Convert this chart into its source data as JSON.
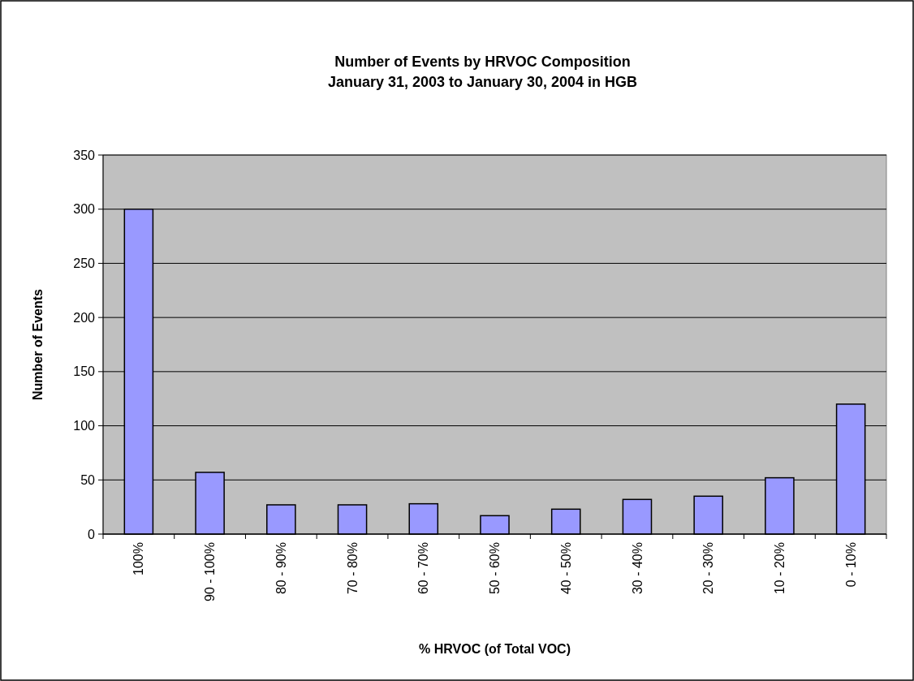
{
  "chart_data": {
    "type": "bar",
    "title": "Number of Events by HRVOC Composition\nJanuary 31, 2003 to January 30, 2004 in HGB",
    "xlabel": "% HRVOC (of Total VOC)",
    "ylabel": "Number of Events",
    "categories": [
      "100%",
      "90 - 100%",
      "80 - 90%",
      "70 - 80%",
      "60 - 70%",
      "50 - 60%",
      "40 - 50%",
      "30 - 40%",
      "20 - 30%",
      "10 - 20%",
      "0 - 10%"
    ],
    "values": [
      300,
      57,
      27,
      27,
      28,
      17,
      23,
      32,
      35,
      52,
      120
    ],
    "color": "#9999ff",
    "ylim": [
      0,
      350
    ],
    "yticks": [
      0,
      50,
      100,
      150,
      200,
      250,
      300,
      350
    ],
    "grid": "y"
  }
}
